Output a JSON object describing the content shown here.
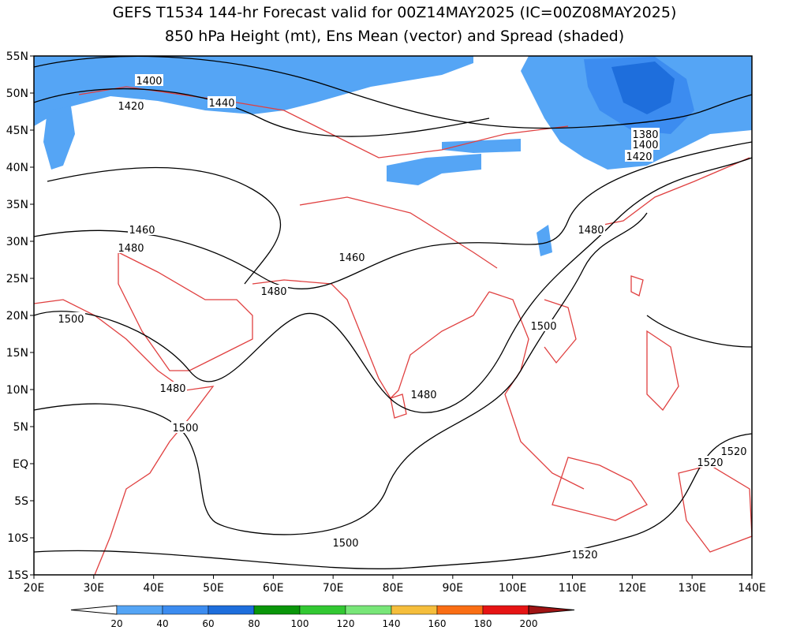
{
  "header": {
    "title_line1": "GEFS T1534 144-hr Forecast valid for 00Z14MAY2025 (IC=00Z08MAY2025)",
    "title_line2": "850 hPa Height (mt), Ens Mean (vector) and Spread (shaded)"
  },
  "map": {
    "lat_labels": [
      "55N",
      "50N",
      "45N",
      "40N",
      "35N",
      "30N",
      "25N",
      "20N",
      "15N",
      "10N",
      "5N",
      "EQ",
      "5S",
      "10S",
      "15S"
    ],
    "lon_labels": [
      "20E",
      "30E",
      "40E",
      "50E",
      "60E",
      "70E",
      "80E",
      "90E",
      "100E",
      "110E",
      "120E",
      "130E",
      "140E"
    ],
    "contour_labels": [
      1400,
      1420,
      1440,
      1380,
      1400,
      1420,
      1460,
      1480,
      1460,
      1480,
      1480,
      1500,
      1500,
      1480,
      1480,
      1500,
      1520,
      1520,
      1500,
      1520
    ],
    "coast_color": "#e04040",
    "contour_color": "#000000"
  },
  "colorbar": {
    "levels": [
      20,
      40,
      60,
      80,
      100,
      120,
      140,
      160,
      180,
      200
    ],
    "colors": [
      "#55a5f5",
      "#3c8cf0",
      "#1e6edc",
      "#0a960a",
      "#32c832",
      "#78e678",
      "#f5be3c",
      "#fa6e14",
      "#e61414"
    ],
    "under_color": "#ffffff",
    "over_color": "#a01414"
  }
}
